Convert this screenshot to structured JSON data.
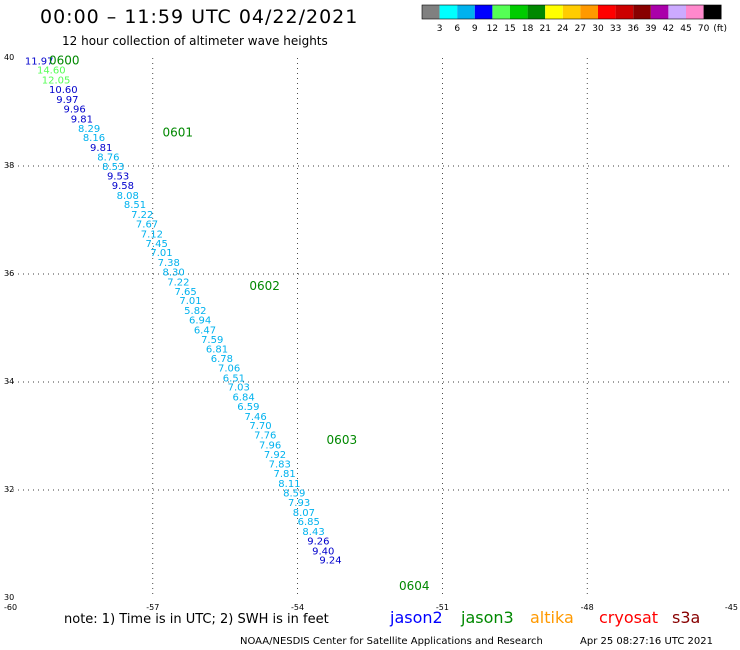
{
  "header": {
    "title": "00:00 – 11:59 UTC 04/22/2021",
    "subtitle": "12 hour collection of altimeter wave heights"
  },
  "legend": {
    "unit": "(ft)",
    "colors": [
      "#808080",
      "#00ffff",
      "#00b2ee",
      "#0000ff",
      "#55ff55",
      "#00cc00",
      "#008800",
      "#ffff00",
      "#ffcc00",
      "#ff9900",
      "#ff0000",
      "#cc0000",
      "#880000",
      "#aa00aa",
      "#ccaaff",
      "#ff88cc",
      "#000000"
    ],
    "labels": [
      "3",
      "6",
      "9",
      "12",
      "15",
      "18",
      "21",
      "24",
      "27",
      "30",
      "33",
      "36",
      "39",
      "42",
      "45",
      "70"
    ]
  },
  "map": {
    "lon_range": [
      -60,
      -45
    ],
    "lat_range": [
      30,
      40
    ],
    "lon_ticks": [
      "-60",
      "-57",
      "-54",
      "-51",
      "-48",
      "-45"
    ],
    "lat_ticks": [
      "40",
      "38",
      "36",
      "34",
      "32",
      "30"
    ],
    "time_labels": [
      {
        "text": "0600",
        "lon": -59.15,
        "lat": 39.88
      },
      {
        "text": "0601",
        "lon": -56.8,
        "lat": 38.55
      },
      {
        "text": "0602",
        "lon": -55.0,
        "lat": 35.7
      },
      {
        "text": "0603",
        "lon": -53.4,
        "lat": 32.85
      },
      {
        "text": "0604",
        "lon": -51.9,
        "lat": 30.15
      }
    ],
    "wave_heights": [
      {
        "value": "11.97",
        "lon": -59.65,
        "lat": 39.88,
        "color": "#0000cc"
      },
      {
        "value": "14.60",
        "lon": -59.4,
        "lat": 39.71,
        "color": "#55ff55"
      },
      {
        "value": "12.05",
        "lon": -59.3,
        "lat": 39.53,
        "color": "#55ff55"
      },
      {
        "value": "10.60",
        "lon": -59.15,
        "lat": 39.35,
        "color": "#0000cc"
      },
      {
        "value": "9.97",
        "lon": -59.0,
        "lat": 39.17,
        "color": "#0000cc"
      },
      {
        "value": "9.96",
        "lon": -58.85,
        "lat": 38.99,
        "color": "#0000cc"
      },
      {
        "value": "9.81",
        "lon": -58.7,
        "lat": 38.81,
        "color": "#0000cc"
      },
      {
        "value": "8.29",
        "lon": -58.55,
        "lat": 38.63,
        "color": "#00b2ee"
      },
      {
        "value": "8.16",
        "lon": -58.45,
        "lat": 38.46,
        "color": "#00b2ee"
      },
      {
        "value": "9.81",
        "lon": -58.3,
        "lat": 38.28,
        "color": "#0000cc"
      },
      {
        "value": "8.76",
        "lon": -58.15,
        "lat": 38.1,
        "color": "#00b2ee"
      },
      {
        "value": "8.53",
        "lon": -58.05,
        "lat": 37.93,
        "color": "#00b2ee"
      },
      {
        "value": "9.53",
        "lon": -57.95,
        "lat": 37.75,
        "color": "#0000cc"
      },
      {
        "value": "9.58",
        "lon": -57.85,
        "lat": 37.57,
        "color": "#0000cc"
      },
      {
        "value": "8.08",
        "lon": -57.75,
        "lat": 37.39,
        "color": "#00b2ee"
      },
      {
        "value": "8.51",
        "lon": -57.6,
        "lat": 37.22,
        "color": "#00b2ee"
      },
      {
        "value": "7.22",
        "lon": -57.45,
        "lat": 37.04,
        "color": "#00b2ee"
      },
      {
        "value": "7.67",
        "lon": -57.35,
        "lat": 36.86,
        "color": "#00b2ee"
      },
      {
        "value": "7.12",
        "lon": -57.25,
        "lat": 36.68,
        "color": "#00b2ee"
      },
      {
        "value": "7.45",
        "lon": -57.15,
        "lat": 36.5,
        "color": "#00b2ee"
      },
      {
        "value": "7.01",
        "lon": -57.05,
        "lat": 36.33,
        "color": "#00b2ee"
      },
      {
        "value": "7.38",
        "lon": -56.9,
        "lat": 36.15,
        "color": "#00b2ee"
      },
      {
        "value": "8.30",
        "lon": -56.8,
        "lat": 35.97,
        "color": "#00b2ee"
      },
      {
        "value": "7.22",
        "lon": -56.7,
        "lat": 35.79,
        "color": "#00b2ee"
      },
      {
        "value": "7.65",
        "lon": -56.55,
        "lat": 35.61,
        "color": "#00b2ee"
      },
      {
        "value": "7.01",
        "lon": -56.45,
        "lat": 35.44,
        "color": "#00b2ee"
      },
      {
        "value": "5.82",
        "lon": -56.35,
        "lat": 35.26,
        "color": "#00b2ee"
      },
      {
        "value": "6.94",
        "lon": -56.25,
        "lat": 35.08,
        "color": "#00b2ee"
      },
      {
        "value": "6.47",
        "lon": -56.15,
        "lat": 34.9,
        "color": "#00b2ee"
      },
      {
        "value": "7.59",
        "lon": -56.0,
        "lat": 34.72,
        "color": "#00b2ee"
      },
      {
        "value": "6.81",
        "lon": -55.9,
        "lat": 34.55,
        "color": "#00b2ee"
      },
      {
        "value": "6.78",
        "lon": -55.8,
        "lat": 34.37,
        "color": "#00b2ee"
      },
      {
        "value": "7.06",
        "lon": -55.65,
        "lat": 34.19,
        "color": "#00b2ee"
      },
      {
        "value": "6.51",
        "lon": -55.55,
        "lat": 34.01,
        "color": "#00b2ee"
      },
      {
        "value": "7.03",
        "lon": -55.45,
        "lat": 33.84,
        "color": "#00b2ee"
      },
      {
        "value": "6.84",
        "lon": -55.35,
        "lat": 33.66,
        "color": "#00b2ee"
      },
      {
        "value": "6.59",
        "lon": -55.25,
        "lat": 33.48,
        "color": "#00b2ee"
      },
      {
        "value": "7.46",
        "lon": -55.1,
        "lat": 33.3,
        "color": "#00b2ee"
      },
      {
        "value": "7.70",
        "lon": -55.0,
        "lat": 33.13,
        "color": "#00b2ee"
      },
      {
        "value": "7.76",
        "lon": -54.9,
        "lat": 32.95,
        "color": "#00b2ee"
      },
      {
        "value": "7.96",
        "lon": -54.8,
        "lat": 32.77,
        "color": "#00b2ee"
      },
      {
        "value": "7.92",
        "lon": -54.7,
        "lat": 32.59,
        "color": "#00b2ee"
      },
      {
        "value": "7.83",
        "lon": -54.6,
        "lat": 32.42,
        "color": "#00b2ee"
      },
      {
        "value": "7.81",
        "lon": -54.5,
        "lat": 32.24,
        "color": "#00b2ee"
      },
      {
        "value": "8.11",
        "lon": -54.4,
        "lat": 32.06,
        "color": "#00b2ee"
      },
      {
        "value": "8.59",
        "lon": -54.3,
        "lat": 31.88,
        "color": "#00b2ee"
      },
      {
        "value": "7.93",
        "lon": -54.2,
        "lat": 31.7,
        "color": "#00b2ee"
      },
      {
        "value": "8.07",
        "lon": -54.1,
        "lat": 31.52,
        "color": "#00b2ee"
      },
      {
        "value": "6.85",
        "lon": -54.0,
        "lat": 31.35,
        "color": "#00b2ee"
      },
      {
        "value": "8.43",
        "lon": -53.9,
        "lat": 31.17,
        "color": "#00b2ee"
      },
      {
        "value": "9.26",
        "lon": -53.8,
        "lat": 30.99,
        "color": "#0000cc"
      },
      {
        "value": "9.40",
        "lon": -53.7,
        "lat": 30.81,
        "color": "#0000cc"
      },
      {
        "value": "9.24",
        "lon": -53.55,
        "lat": 30.64,
        "color": "#0000cc"
      }
    ]
  },
  "footer": {
    "note": "note: 1) Time is in UTC; 2) SWH is in feet",
    "satellites": [
      {
        "name": "jason2",
        "color": "#0000ff"
      },
      {
        "name": "jason3",
        "color": "#008800"
      },
      {
        "name": "altika",
        "color": "#ff9900"
      },
      {
        "name": "cryosat",
        "color": "#ff0000"
      },
      {
        "name": "s3a",
        "color": "#880000"
      }
    ],
    "credit": "NOAA/NESDIS Center for Satellite Applications and Research",
    "timestamp": "Apr 25 08:27:16 UTC 2021"
  }
}
